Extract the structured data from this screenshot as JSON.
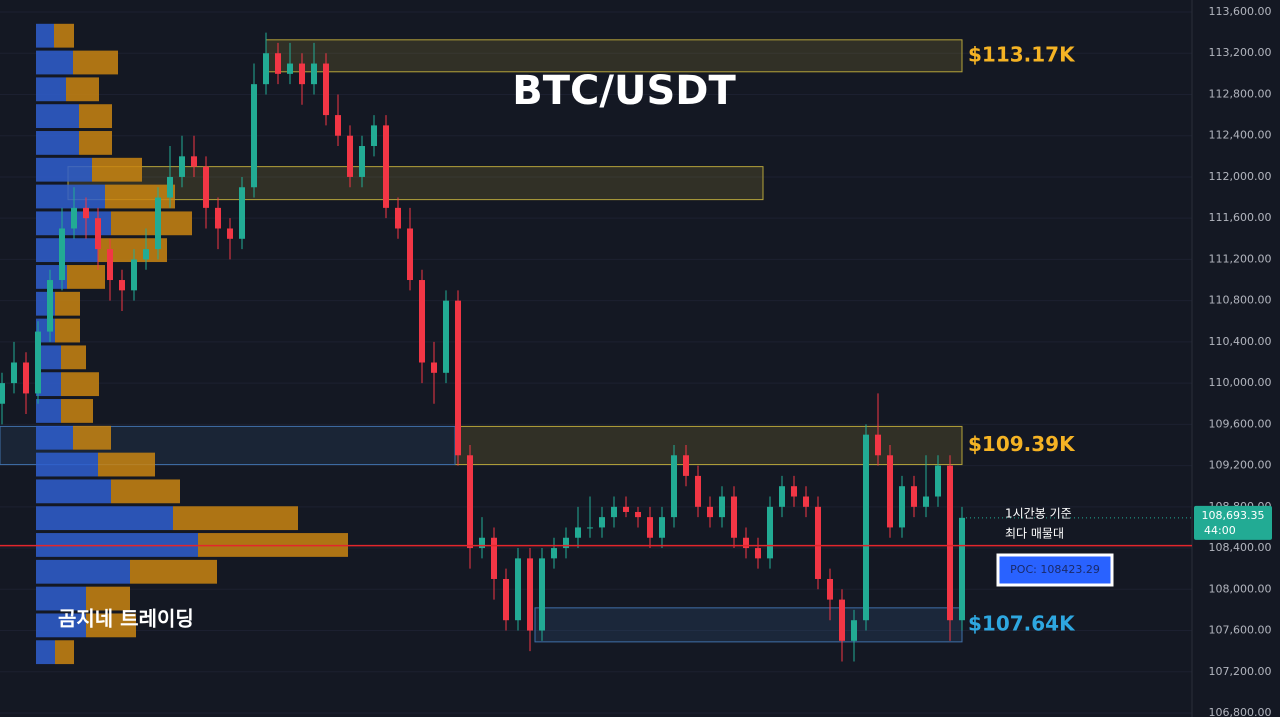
{
  "chart_data": {
    "type": "candlestick",
    "title": "BTC/USDT",
    "watermark": "곰지네 트레이딩",
    "up_color": "#22ab94",
    "down_color": "#f23645",
    "ylim": [
      106800,
      113600
    ],
    "yticks": [
      {
        "value": 106800,
        "label": "106,800.00"
      },
      {
        "value": 107200,
        "label": "107,200.00"
      },
      {
        "value": 107600,
        "label": "107,600.00"
      },
      {
        "value": 108000,
        "label": "108,000.00"
      },
      {
        "value": 108400,
        "label": "108,400.00"
      },
      {
        "value": 108800,
        "label": "108,800.00"
      },
      {
        "value": 109200,
        "label": "109,200.00"
      },
      {
        "value": 109600,
        "label": "109,600.00"
      },
      {
        "value": 110000,
        "label": "110,000.00"
      },
      {
        "value": 110400,
        "label": "110,400.00"
      },
      {
        "value": 110800,
        "label": "110,800.00"
      },
      {
        "value": 111200,
        "label": "111,200.00"
      },
      {
        "value": 111600,
        "label": "111,600.00"
      },
      {
        "value": 112000,
        "label": "112,000.00"
      },
      {
        "value": 112400,
        "label": "112,400.00"
      },
      {
        "value": 112800,
        "label": "112,800.00"
      },
      {
        "value": 113200,
        "label": "113,200.00"
      },
      {
        "value": 113600,
        "label": "113,600.00"
      }
    ],
    "open": [
      109800,
      110000,
      110200,
      109900,
      110500,
      111000,
      111500,
      111700,
      111600,
      111300,
      111000,
      110900,
      111200,
      111300,
      111800,
      112000,
      112200,
      112100,
      111700,
      111500,
      111400,
      111900,
      112900,
      113200,
      113000,
      113100,
      112900,
      113100,
      112600,
      112400,
      112000,
      112300,
      112500,
      111700,
      111500,
      111000,
      110200,
      110100,
      110800,
      109300,
      108400,
      108500,
      108100,
      107700,
      108300,
      107600,
      108300,
      108400,
      108500,
      108600,
      108600,
      108700,
      108800,
      108750,
      108700,
      108500,
      108700,
      109300,
      109100,
      108800,
      108700,
      108900,
      108500,
      108400,
      108300,
      108800,
      109000,
      108900,
      108800,
      108100,
      107900,
      107500,
      107700,
      109500,
      109300,
      108600,
      109000,
      108800,
      108900,
      109200,
      107700
    ],
    "high": [
      110100,
      110400,
      110300,
      110600,
      111100,
      111700,
      111900,
      111800,
      111700,
      111400,
      111100,
      111300,
      111500,
      111900,
      112300,
      112400,
      112400,
      112200,
      111800,
      111600,
      112000,
      113100,
      113400,
      113300,
      113300,
      113200,
      113300,
      113200,
      112800,
      112500,
      112400,
      112600,
      112600,
      111800,
      111700,
      111100,
      110400,
      110900,
      110900,
      109400,
      108700,
      108600,
      108200,
      108400,
      108400,
      108400,
      108500,
      108600,
      108800,
      108900,
      108800,
      108900,
      108900,
      108800,
      108800,
      108800,
      109400,
      109400,
      109200,
      108900,
      109000,
      109000,
      108600,
      108500,
      108900,
      109100,
      109100,
      109000,
      108900,
      108200,
      108000,
      107800,
      109600,
      109900,
      109400,
      109100,
      109100,
      109300,
      109300,
      109300,
      108800
    ],
    "low": [
      109600,
      109900,
      109700,
      109800,
      110400,
      110900,
      111400,
      111400,
      111100,
      110800,
      110700,
      110800,
      111100,
      111200,
      111700,
      111900,
      112000,
      111500,
      111300,
      111200,
      111300,
      111800,
      112800,
      112900,
      112900,
      112700,
      112800,
      112500,
      112300,
      111900,
      111900,
      112200,
      111600,
      111400,
      110900,
      110000,
      109800,
      110000,
      109200,
      108200,
      108300,
      107900,
      107600,
      107600,
      107400,
      107500,
      108200,
      108300,
      108400,
      108500,
      108500,
      108600,
      108700,
      108600,
      108400,
      108400,
      108600,
      109000,
      108700,
      108600,
      108600,
      108400,
      108300,
      108200,
      108200,
      108700,
      108800,
      108700,
      108000,
      107700,
      107300,
      107300,
      107600,
      109200,
      108500,
      108500,
      108700,
      108700,
      108800,
      107500,
      107600
    ],
    "close": [
      110000,
      110200,
      109900,
      110500,
      111000,
      111500,
      111700,
      111600,
      111300,
      111000,
      110900,
      111200,
      111300,
      111800,
      112000,
      112200,
      112100,
      111700,
      111500,
      111400,
      111900,
      112900,
      113200,
      113000,
      113100,
      112900,
      113100,
      112600,
      112400,
      112000,
      112300,
      112500,
      111700,
      111500,
      111000,
      110200,
      110100,
      110800,
      109300,
      108400,
      108500,
      108100,
      107700,
      108300,
      107600,
      108300,
      108400,
      108500,
      108600,
      108600,
      108700,
      108800,
      108750,
      108700,
      108500,
      108700,
      109300,
      109100,
      108800,
      108700,
      108900,
      108500,
      108400,
      108300,
      108800,
      109000,
      108900,
      108800,
      108100,
      107900,
      107500,
      107700,
      109500,
      109300,
      108600,
      109000,
      108800,
      108900,
      109200,
      107700,
      108693.35
    ],
    "last_price_label": "108,693.35",
    "countdown": "44:00",
    "volume_profile": {
      "bins": [
        107260,
        107520,
        107780,
        108040,
        108300,
        108560,
        108820,
        109080,
        109340,
        109600,
        109860,
        110120,
        110380,
        110640,
        110900,
        111160,
        111420,
        111680,
        111940,
        112200,
        112460,
        112720,
        112980,
        113240,
        113500
      ],
      "buy": [
        19,
        50,
        50,
        94,
        162,
        137,
        75,
        62,
        37,
        25,
        25,
        25,
        19,
        19,
        31,
        62,
        75,
        69,
        56,
        43,
        43,
        30,
        37,
        18
      ],
      "sell": [
        19,
        50,
        44,
        87,
        150,
        125,
        69,
        57,
        38,
        32,
        38,
        25,
        25,
        25,
        38,
        69,
        81,
        70,
        50,
        33,
        33,
        33,
        45,
        20
      ],
      "buy_color": "#2f5fcf",
      "sell_color": "#c98512"
    },
    "zones": [
      {
        "label": "$113.17K",
        "top": 113330,
        "bottom": 113020,
        "color": "#b5a33a",
        "label_color": "#f5b324"
      },
      {
        "top": 112100,
        "bottom": 111780,
        "color": "#b5a33a"
      },
      {
        "label": "$109.39K",
        "top": 109580,
        "bottom": 109210,
        "color": "#b5a33a",
        "label_color": "#f5b324"
      },
      {
        "label": "$107.64K",
        "top": 107820,
        "bottom": 107490,
        "color": "#3f6fa8",
        "label_color": "#2ea7e0"
      }
    ],
    "poc": 108423.29,
    "poc_label": "POC: 108423.29",
    "poc_note": [
      "1시간봉 기준",
      "최다 매물대"
    ]
  }
}
